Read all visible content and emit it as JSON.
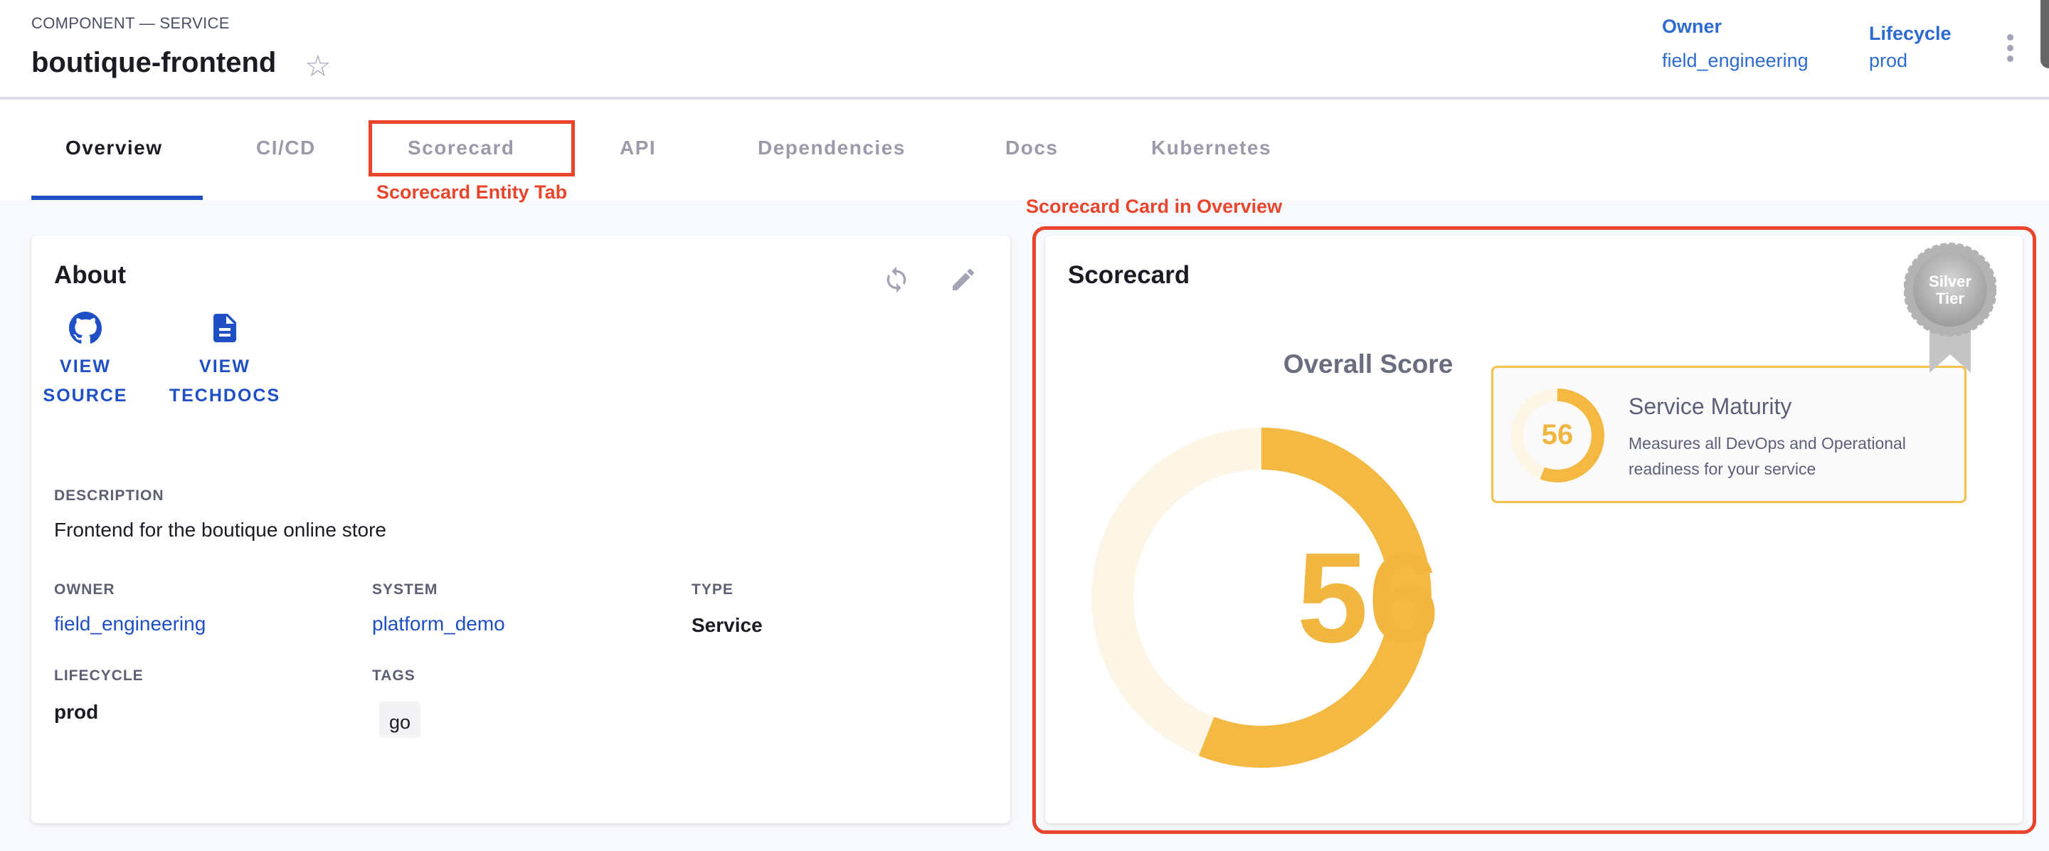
{
  "header": {
    "kind": "COMPONENT — SERVICE",
    "title": "boutique-frontend",
    "favorite_icon": "star-outline-icon",
    "owner_label": "Owner",
    "owner_value": "field_engineering",
    "lifecycle_label": "Lifecycle",
    "lifecycle_value": "prod",
    "menu_icon": "more-vertical-icon"
  },
  "tabs": [
    {
      "label": "Overview",
      "active": true
    },
    {
      "label": "CI/CD"
    },
    {
      "label": "Scorecard"
    },
    {
      "label": "API"
    },
    {
      "label": "Dependencies"
    },
    {
      "label": "Docs"
    },
    {
      "label": "Kubernetes"
    }
  ],
  "annotations": {
    "tab": "Scorecard Entity Tab",
    "card": "Scorecard Card in Overview",
    "color": "#e8452c"
  },
  "about": {
    "title": "About",
    "links": [
      {
        "line1": "VIEW",
        "line2": "SOURCE",
        "icon": "github-icon"
      },
      {
        "line1": "VIEW",
        "line2": "TECHDOCS",
        "icon": "document-icon"
      }
    ],
    "description_label": "DESCRIPTION",
    "description": "Frontend for the boutique online store",
    "owner_label": "OWNER",
    "owner": "field_engineering",
    "system_label": "SYSTEM",
    "system": "platform_demo",
    "type_label": "TYPE",
    "type": "Service",
    "lifecycle_label": "LIFECYCLE",
    "lifecycle": "prod",
    "tags_label": "TAGS",
    "tags": [
      "go"
    ]
  },
  "scorecard": {
    "title": "Scorecard",
    "overall_label": "Overall Score",
    "overall_score": "56",
    "overall_percent": 56,
    "badge_line1": "Silver",
    "badge_line2": "Tier",
    "check": {
      "score": "56",
      "percent": 56,
      "name": "Service Maturity",
      "description": "Measures all DevOps and Operational readiness for your service"
    },
    "colors": {
      "fill": "#f4b942",
      "track": "#fdf5e6",
      "text": "#f0b63f"
    }
  }
}
